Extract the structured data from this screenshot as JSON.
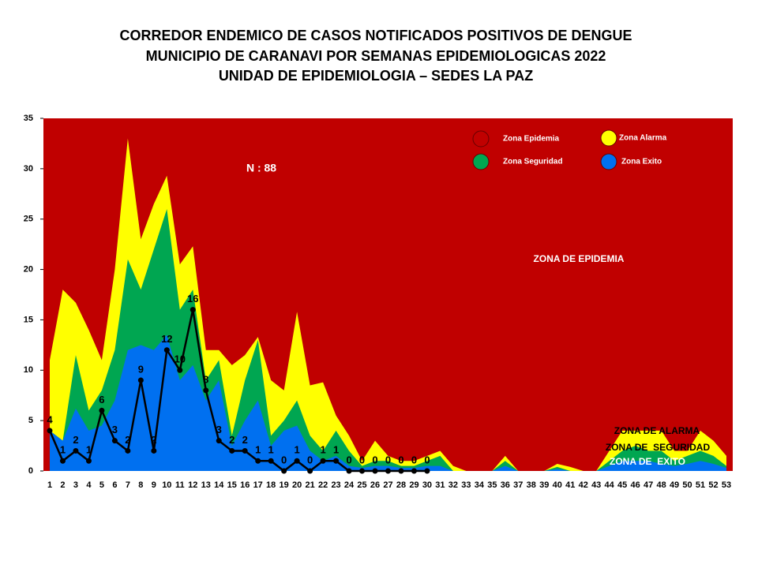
{
  "chart_data": {
    "type": "endemic-channel",
    "title": [
      "CORREDOR ENDEMICO DE CASOS NOTIFICADOS POSITIVOS DE DENGUE",
      "MUNICIPIO DE CARANAVI POR SEMANAS EPIDEMIOLOGICAS 2022",
      "UNIDAD DE EPIDEMIOLOGIA – SEDES LA PAZ"
    ],
    "x": [
      1,
      2,
      3,
      4,
      5,
      6,
      7,
      8,
      9,
      10,
      11,
      12,
      13,
      14,
      15,
      16,
      17,
      18,
      19,
      20,
      21,
      22,
      23,
      24,
      25,
      26,
      27,
      28,
      29,
      30,
      31,
      32,
      33,
      34,
      35,
      36,
      37,
      38,
      39,
      40,
      41,
      42,
      43,
      44,
      45,
      46,
      47,
      48,
      49,
      50,
      51,
      52,
      53
    ],
    "xlim": [
      1,
      53
    ],
    "ylim": [
      0,
      35
    ],
    "yticks": [
      0,
      5,
      10,
      15,
      20,
      25,
      30,
      35
    ],
    "background": {
      "name": "Zona Epidemia",
      "color": "#c00000"
    },
    "series": [
      {
        "name": "Zona Alarma",
        "color": "#ffff00",
        "values": [
          11,
          18,
          16.7,
          14,
          11,
          20,
          33,
          23,
          26.5,
          29.3,
          20.5,
          22.3,
          12,
          12,
          10.5,
          11.5,
          13.3,
          9,
          8,
          15.8,
          8.5,
          8.8,
          5.5,
          3.5,
          1,
          3,
          1.5,
          1,
          1,
          1.5,
          2,
          0.5,
          0,
          0,
          0,
          1.5,
          0,
          0,
          0,
          0.7,
          0.4,
          0,
          0,
          2,
          4,
          4,
          4,
          4,
          2,
          2,
          4,
          3,
          1.5
        ]
      },
      {
        "name": "Zona Seguridad",
        "color": "#00a651",
        "values": [
          4,
          3,
          11.5,
          6,
          8,
          12,
          21,
          18,
          22,
          26,
          16,
          18,
          9,
          11,
          3.5,
          9,
          13,
          3.5,
          5,
          7,
          3.5,
          2,
          4,
          2,
          0.5,
          1,
          1,
          0.5,
          0.5,
          1,
          1.5,
          0,
          0,
          0,
          0,
          1,
          0,
          0,
          0,
          0.4,
          0,
          0,
          0,
          1,
          2,
          2.5,
          2,
          2,
          1,
          1.5,
          2,
          1.5,
          0.5
        ]
      },
      {
        "name": "Zona Exito",
        "color": "#0070f0",
        "values": [
          4,
          3,
          6.2,
          4,
          4.5,
          7,
          12,
          12.5,
          12,
          13.5,
          9,
          10.5,
          7,
          9,
          2.5,
          5,
          7,
          2.5,
          4,
          4.5,
          2,
          1,
          1.5,
          0.5,
          0.3,
          0.5,
          0.5,
          0.3,
          0.3,
          0.5,
          0.5,
          0,
          0,
          0,
          0,
          0.5,
          0,
          0,
          0,
          0.2,
          0,
          0,
          0,
          0.5,
          1,
          1,
          1,
          0.7,
          0.5,
          0.7,
          1,
          0.7,
          0.3
        ]
      }
    ],
    "cases": {
      "color": "#000000",
      "values": [
        4,
        1,
        2,
        1,
        6,
        3,
        2,
        9,
        2,
        12,
        10,
        16,
        8,
        3,
        2,
        2,
        1,
        1,
        0,
        1,
        0,
        1,
        1,
        0,
        0,
        0,
        0,
        0,
        0,
        0,
        null,
        null,
        null,
        null,
        null,
        null,
        null,
        null,
        null,
        null,
        null,
        null,
        null,
        null,
        null,
        null,
        null,
        null,
        null,
        null,
        null,
        null,
        null
      ]
    },
    "annotations": [
      "N : 88",
      "ZONA DE EPIDEMIA",
      "ZONA DE ALARMA",
      "ZONA DE  SEGURIDAD",
      "ZONA DE  EXITO"
    ]
  }
}
